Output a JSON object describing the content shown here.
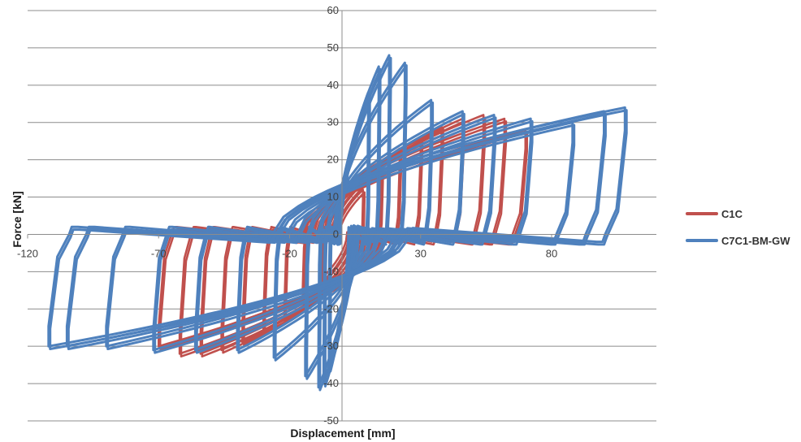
{
  "chart_data": {
    "type": "line",
    "title": "",
    "xlabel": "Displacement [mm]",
    "ylabel": "Force [kN]",
    "xlim": [
      -120,
      120
    ],
    "ylim": [
      -50,
      60
    ],
    "x_ticks": [
      -120,
      -70,
      -20,
      30,
      80
    ],
    "x_tick_labels": [
      "-120",
      "-70",
      "-20",
      "30",
      "80"
    ],
    "y_ticks": [
      -50,
      -40,
      -30,
      -20,
      -10,
      0,
      10,
      20,
      30,
      40,
      50,
      60
    ],
    "y_tick_labels": [
      "-50",
      "-40",
      "-30",
      "-20",
      "-10",
      "0",
      "10",
      "20",
      "30",
      "40",
      "50",
      "60"
    ],
    "grid": "horizontal",
    "legend_position": "right",
    "series": [
      {
        "name": "C1C",
        "color": "#C0504D",
        "cycles": [
          {
            "dmax": 8,
            "fmax": 12,
            "dmin": -8,
            "fmin": -12
          },
          {
            "dmax": 15,
            "fmax": 18,
            "dmin": -15,
            "fmin": -18
          },
          {
            "dmax": 22,
            "fmax": 23,
            "dmin": -22,
            "fmin": -23
          },
          {
            "dmax": 30,
            "fmax": 26,
            "dmin": -30,
            "fmin": -26
          },
          {
            "dmax": 38,
            "fmax": 29,
            "dmin": -38,
            "fmin": -29
          },
          {
            "dmax": 46,
            "fmax": 31,
            "dmin": -46,
            "fmin": -31
          },
          {
            "dmax": 54,
            "fmax": 32,
            "dmin": -54,
            "fmin": -32
          },
          {
            "dmax": 62,
            "fmax": 31,
            "dmin": -62,
            "fmin": -32
          },
          {
            "dmax": 70,
            "fmax": 28,
            "dmin": -70,
            "fmin": -30
          }
        ]
      },
      {
        "name": "C7C1-BM-GW",
        "color": "#4F81BD",
        "cycles": [
          {
            "dmax": 10,
            "fmax": 38,
            "dmin": -5,
            "fmin": -36
          },
          {
            "dmax": 14,
            "fmax": 45,
            "dmin": -7,
            "fmin": -40
          },
          {
            "dmax": 18,
            "fmax": 48,
            "dmin": -9,
            "fmin": -41
          },
          {
            "dmax": 24,
            "fmax": 46,
            "dmin": -14,
            "fmin": -38
          },
          {
            "dmax": 34,
            "fmax": 36,
            "dmin": -26,
            "fmin": -33
          },
          {
            "dmax": 46,
            "fmax": 33,
            "dmin": -40,
            "fmin": -31
          },
          {
            "dmax": 58,
            "fmax": 32,
            "dmin": -56,
            "fmin": -31
          },
          {
            "dmax": 72,
            "fmax": 31,
            "dmin": -72,
            "fmin": -31
          },
          {
            "dmax": 88,
            "fmax": 30,
            "dmin": -90,
            "fmin": -30
          },
          {
            "dmax": 100,
            "fmax": 33,
            "dmin": -105,
            "fmin": -30
          },
          {
            "dmax": 108,
            "fmax": 34,
            "dmin": -112,
            "fmin": -30
          }
        ]
      }
    ]
  }
}
